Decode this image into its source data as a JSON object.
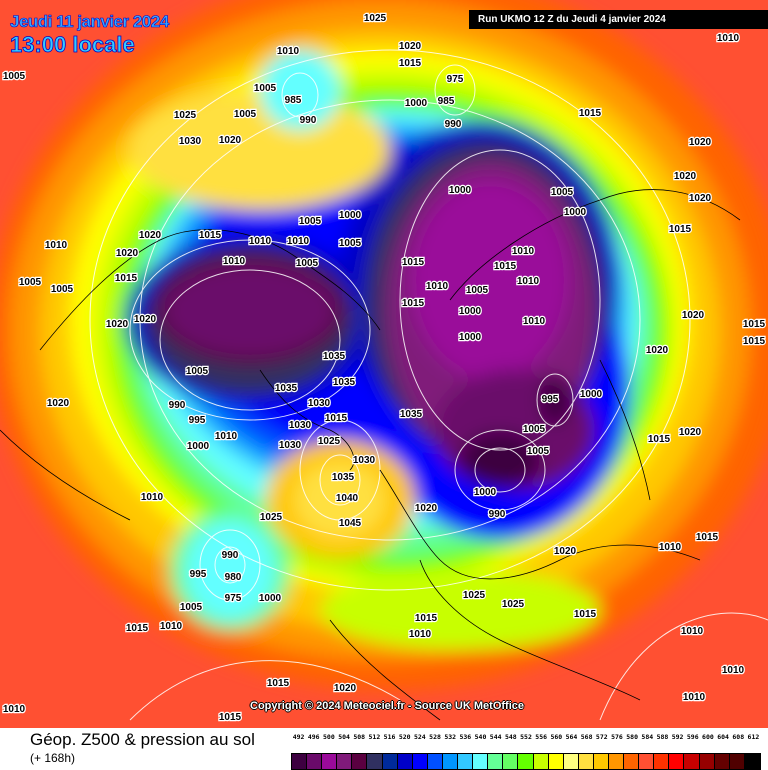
{
  "header": {
    "date": "Jeudi 11 janvier 2024",
    "time": "13:00 locale",
    "run": "Run UKMO 12 Z du Jeudi 4 janvier 2024"
  },
  "copyright": "Copyright © 2024 Meteociel.fr - Source UK MetOffice",
  "legend": {
    "title": "Géop. Z500 & pression au sol",
    "subtitle": "(+ 168h)",
    "values": [
      "492",
      "496",
      "500",
      "504",
      "508",
      "512",
      "516",
      "520",
      "524",
      "528",
      "532",
      "536",
      "540",
      "544",
      "548",
      "552",
      "556",
      "560",
      "564",
      "568",
      "572",
      "576",
      "580",
      "584",
      "588",
      "592",
      "596",
      "600",
      "604",
      "608",
      "612"
    ],
    "colors": [
      "#3d0040",
      "#6a0a6a",
      "#9a0a9a",
      "#801a7a",
      "#5a0040",
      "#303060",
      "#002a9a",
      "#0000c8",
      "#0000ff",
      "#0050ff",
      "#0096ff",
      "#32c8ff",
      "#64ffff",
      "#64ff96",
      "#64ff64",
      "#64ff00",
      "#c8ff00",
      "#ffff00",
      "#ffff80",
      "#ffe040",
      "#ffc800",
      "#ff9600",
      "#ff6400",
      "#ff5032",
      "#ff3200",
      "#ff0000",
      "#c80000",
      "#960000",
      "#640000",
      "#500000",
      "#000000"
    ]
  },
  "isobar_labels": [
    "1005",
    "1025",
    "1010",
    "1020",
    "1010",
    "1015",
    "975",
    "985",
    "985",
    "990",
    "1000",
    "1025",
    "1005",
    "1005",
    "990",
    "1015",
    "1030",
    "1020",
    "1020",
    "1020",
    "1000",
    "1005",
    "1000",
    "1020",
    "1000",
    "1020",
    "1015",
    "1010",
    "1010",
    "1005",
    "1005",
    "1015",
    "1010",
    "1020",
    "1010",
    "1005",
    "1015",
    "1010",
    "1015",
    "1010",
    "1005",
    "1015",
    "1005",
    "1010",
    "1005",
    "1015",
    "1000",
    "1020",
    "1020",
    "1020",
    "1000",
    "1010",
    "1015",
    "1015",
    "1020",
    "1035",
    "1035",
    "1005",
    "1035",
    "1030",
    "1000",
    "990",
    "995",
    "1035",
    "995",
    "1020",
    "1000",
    "1030",
    "1015",
    "1010",
    "1030",
    "1025",
    "1005",
    "1015",
    "1020",
    "1005",
    "1030",
    "1035",
    "1040",
    "1045",
    "1010",
    "1000",
    "990",
    "1020",
    "1025",
    "1020",
    "1010",
    "1015",
    "990",
    "980",
    "995",
    "975",
    "1000",
    "1005",
    "1010",
    "1015",
    "1025",
    "1025",
    "1015",
    "1015",
    "1010",
    "1010",
    "1010",
    "1010",
    "1020",
    "1010",
    "1015",
    "1015"
  ]
}
